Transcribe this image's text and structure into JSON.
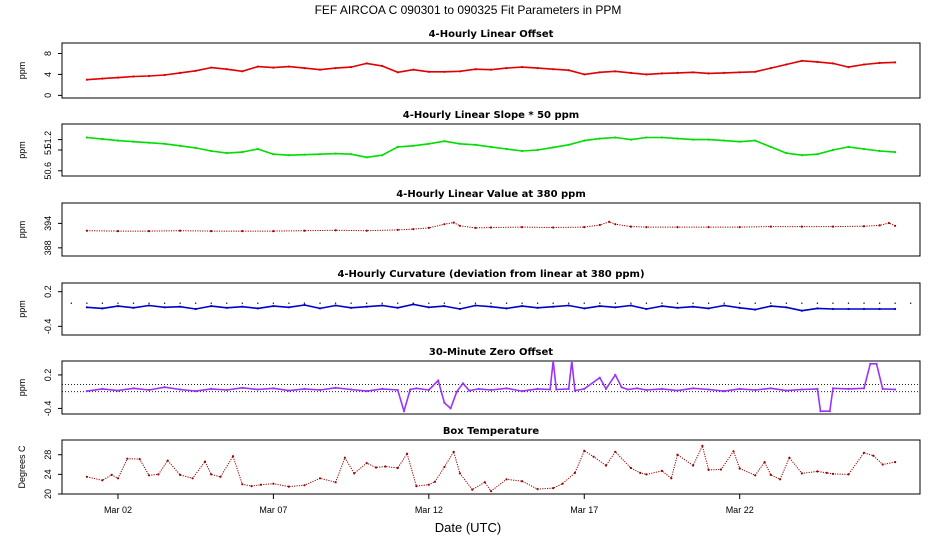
{
  "title": "FEF   AIRCOA C   090301 to 090325   Fit Parameters in PPM",
  "chart_data": {
    "type": "line",
    "title": "FEF   AIRCOA C   090301 to 090325   Fit Parameters in PPM",
    "xlabel": "Date (UTC)",
    "x_ticks": [
      {
        "day": 2,
        "label": "Mar 02"
      },
      {
        "day": 7,
        "label": "Mar 07"
      },
      {
        "day": 12,
        "label": "Mar 12"
      },
      {
        "day": 17,
        "label": "Mar 17"
      },
      {
        "day": 22,
        "label": "Mar 22"
      }
    ],
    "xlim": [
      0.2,
      27.8
    ],
    "panels": [
      {
        "title": "4-Hourly Linear Offset",
        "ylabel": "ppm",
        "ylim": [
          -0.5,
          10
        ],
        "yticks": [
          0,
          4,
          8
        ],
        "color": "#e00000",
        "style": "line",
        "series": {
          "x": [
            1,
            1.5,
            2,
            2.5,
            3,
            3.5,
            4,
            4.5,
            5,
            5.5,
            6,
            6.5,
            7,
            7.5,
            8,
            8.5,
            9,
            9.5,
            10,
            10.5,
            11,
            11.5,
            12,
            12.5,
            13,
            13.5,
            14,
            14.5,
            15,
            15.5,
            16,
            16.5,
            17,
            17.5,
            18,
            18.5,
            19,
            19.5,
            20,
            20.5,
            21,
            21.5,
            22,
            22.5,
            23,
            23.5,
            24,
            24.5,
            25,
            25.5,
            26,
            26.5,
            27
          ],
          "y": [
            3.0,
            3.2,
            3.4,
            3.6,
            3.7,
            3.9,
            4.3,
            4.7,
            5.3,
            5.0,
            4.6,
            5.5,
            5.3,
            5.5,
            5.2,
            4.9,
            5.2,
            5.4,
            6.1,
            5.6,
            4.4,
            4.9,
            4.5,
            4.5,
            4.6,
            5.0,
            4.9,
            5.2,
            5.4,
            5.2,
            5.0,
            4.8,
            4.0,
            4.4,
            4.6,
            4.3,
            4.0,
            4.2,
            4.3,
            4.4,
            4.2,
            4.3,
            4.4,
            4.5,
            5.2,
            5.9,
            6.6,
            6.4,
            6.1,
            5.4,
            5.9,
            6.2,
            6.3
          ]
        }
      },
      {
        "title": "4-Hourly Linear Slope * 50 ppm",
        "ylabel": "ppm",
        "ylim": [
          50.5,
          51.5
        ],
        "yticks": [
          50.6,
          51.0,
          51.2
        ],
        "color": "#00dd00",
        "style": "line",
        "series": {
          "x": [
            1,
            1.5,
            2,
            2.5,
            3,
            3.5,
            4,
            4.5,
            5,
            5.5,
            6,
            6.5,
            7,
            7.5,
            8,
            8.5,
            9,
            9.5,
            10,
            10.5,
            11,
            11.5,
            12,
            12.5,
            13,
            13.5,
            14,
            14.5,
            15,
            15.5,
            16,
            16.5,
            17,
            17.5,
            18,
            18.5,
            19,
            19.5,
            20,
            20.5,
            21,
            21.5,
            22,
            22.5,
            23,
            23.5,
            24,
            24.5,
            25,
            25.5,
            26,
            26.5,
            27
          ],
          "y": [
            51.24,
            51.21,
            51.18,
            51.16,
            51.14,
            51.12,
            51.08,
            51.04,
            50.98,
            50.94,
            50.96,
            51.02,
            50.92,
            50.9,
            50.91,
            50.92,
            50.93,
            50.92,
            50.86,
            50.9,
            51.06,
            51.08,
            51.12,
            51.17,
            51.12,
            51.1,
            51.06,
            51.02,
            50.98,
            51.0,
            51.05,
            51.1,
            51.18,
            51.22,
            51.24,
            51.2,
            51.24,
            51.24,
            51.22,
            51.2,
            51.2,
            51.18,
            51.16,
            51.18,
            51.06,
            50.94,
            50.9,
            50.92,
            51.0,
            51.06,
            51.02,
            50.98,
            50.96
          ]
        }
      },
      {
        "title": "4-Hourly Linear Value at 380 ppm",
        "ylabel": "ppm",
        "ylim": [
          386,
          399
        ],
        "yticks": [
          388,
          394
        ],
        "color": "#990000",
        "style": "dots",
        "series": {
          "x": [
            1,
            2,
            3,
            4,
            5,
            6,
            7,
            8,
            9,
            10,
            11,
            11.5,
            12,
            12.5,
            12.8,
            13,
            13.5,
            14,
            15,
            16,
            17,
            17.5,
            17.8,
            18,
            18.5,
            19,
            20,
            21,
            22,
            23,
            24,
            25,
            26,
            26.5,
            26.8,
            27
          ],
          "y": [
            392.2,
            392.1,
            392.1,
            392.2,
            392.1,
            392.1,
            392.1,
            392.2,
            392.3,
            392.2,
            392.4,
            392.6,
            392.9,
            393.8,
            394.2,
            393.4,
            392.9,
            393.0,
            393.1,
            393.0,
            393.1,
            393.6,
            394.4,
            393.8,
            393.2,
            393.1,
            393.1,
            393.1,
            393.1,
            393.2,
            393.2,
            393.2,
            393.3,
            393.5,
            394.1,
            393.4
          ]
        }
      },
      {
        "title": "4-Hourly Curvature (deviation from linear at 380 ppm)",
        "ylabel": "ppm",
        "ylim": [
          -0.55,
          0.35
        ],
        "yticks": [
          -0.4,
          0.2
        ],
        "color": "#0000cc",
        "style": "line",
        "series": {
          "x": [
            1,
            1.5,
            2,
            2.5,
            3,
            3.5,
            4,
            4.5,
            5,
            5.5,
            6,
            6.5,
            7,
            7.5,
            8,
            8.5,
            9,
            9.5,
            10,
            10.5,
            11,
            11.5,
            12,
            12.5,
            13,
            13.5,
            14,
            14.5,
            15,
            15.5,
            16,
            16.5,
            17,
            17.5,
            18,
            18.5,
            19,
            19.5,
            20,
            20.5,
            21,
            21.5,
            22,
            22.5,
            23,
            23.5,
            24,
            24.5,
            25,
            25.5,
            26,
            26.5,
            27
          ],
          "y": [
            -0.07,
            -0.09,
            -0.05,
            -0.08,
            -0.04,
            -0.07,
            -0.06,
            -0.1,
            -0.05,
            -0.08,
            -0.06,
            -0.09,
            -0.05,
            -0.07,
            -0.03,
            -0.09,
            -0.04,
            -0.08,
            -0.06,
            -0.04,
            -0.08,
            -0.02,
            -0.07,
            -0.05,
            -0.1,
            -0.04,
            -0.06,
            -0.09,
            -0.05,
            -0.08,
            -0.06,
            -0.04,
            -0.09,
            -0.05,
            -0.07,
            -0.04,
            -0.1,
            -0.05,
            -0.08,
            -0.06,
            -0.09,
            -0.04,
            -0.08,
            -0.11,
            -0.05,
            -0.07,
            -0.13,
            -0.09,
            -0.1,
            -0.1,
            -0.1,
            -0.1,
            -0.1
          ]
        },
        "reference_dots_y": 0.0
      },
      {
        "title": "30-Minute Zero Offset",
        "ylabel": "ppm",
        "ylim": [
          -0.5,
          0.45
        ],
        "yticks": [
          -0.4,
          0.2
        ],
        "color": "#9933ff",
        "style": "line",
        "reference_lines_y": [
          0.03,
          -0.1
        ],
        "series": {
          "x": [
            1,
            1.5,
            2,
            2.5,
            3,
            3.5,
            4,
            4.5,
            5,
            5.5,
            6,
            6.5,
            7,
            7.5,
            8,
            8.5,
            9,
            9.5,
            10,
            10.5,
            11,
            11.2,
            11.4,
            11.6,
            12,
            12.3,
            12.5,
            12.7,
            12.9,
            13.1,
            13.3,
            13.6,
            14,
            14.5,
            15,
            15.5,
            15.9,
            16.0,
            16.1,
            16.5,
            16.6,
            16.7,
            17,
            17.5,
            17.7,
            18,
            18.2,
            18.4,
            18.7,
            19,
            19.5,
            20,
            20.5,
            21,
            21.5,
            22,
            22.5,
            23,
            23.5,
            24,
            24.5,
            24.6,
            24.9,
            25,
            25.5,
            26,
            26.2,
            26.4,
            26.6,
            27
          ],
          "y": [
            -0.09,
            -0.05,
            -0.08,
            -0.04,
            -0.07,
            -0.02,
            -0.06,
            -0.09,
            -0.05,
            -0.07,
            -0.03,
            -0.06,
            -0.04,
            -0.08,
            -0.05,
            -0.07,
            -0.03,
            -0.06,
            -0.09,
            -0.05,
            -0.07,
            -0.45,
            -0.06,
            -0.04,
            -0.07,
            0.1,
            -0.3,
            -0.4,
            -0.1,
            0.05,
            -0.08,
            -0.05,
            -0.07,
            -0.04,
            -0.09,
            -0.05,
            -0.06,
            0.45,
            -0.06,
            -0.05,
            0.45,
            -0.08,
            -0.05,
            0.15,
            -0.05,
            0.2,
            -0.02,
            -0.06,
            -0.04,
            -0.07,
            -0.05,
            -0.08,
            -0.04,
            -0.06,
            -0.09,
            -0.05,
            -0.07,
            -0.04,
            -0.08,
            -0.06,
            -0.05,
            -0.45,
            -0.45,
            -0.04,
            -0.05,
            -0.04,
            0.4,
            0.4,
            -0.05,
            -0.06
          ]
        }
      },
      {
        "title": "Box Temperature",
        "ylabel": "Degrees C",
        "ylim": [
          20,
          31
        ],
        "yticks": [
          20,
          24,
          28
        ],
        "color": "#990000",
        "style": "dots",
        "series": {
          "x": [
            1,
            1.5,
            1.8,
            2,
            2.3,
            2.7,
            3,
            3.3,
            3.6,
            4,
            4.4,
            4.8,
            5,
            5.3,
            5.7,
            6,
            6.3,
            6.6,
            7,
            7.5,
            8,
            8.5,
            9,
            9.3,
            9.6,
            10,
            10.3,
            10.6,
            11,
            11.3,
            11.6,
            12,
            12.2,
            12.5,
            12.8,
            13,
            13.4,
            13.8,
            14,
            14.5,
            15,
            15.5,
            16,
            16.3,
            16.7,
            17,
            17.3,
            17.7,
            18,
            18.5,
            18.8,
            19,
            19.5,
            19.8,
            20,
            20.5,
            20.8,
            21,
            21.4,
            21.8,
            22,
            22.5,
            22.8,
            23,
            23.3,
            23.6,
            24,
            24.5,
            24.8,
            25,
            25.5,
            26,
            26.3,
            26.6,
            27
          ],
          "y": [
            23.5,
            22.8,
            23.9,
            23.2,
            27.2,
            27.1,
            23.8,
            24.0,
            26.8,
            23.9,
            23.2,
            26.6,
            24.0,
            23.5,
            27.7,
            22.0,
            21.6,
            21.9,
            22.1,
            21.5,
            21.8,
            23.2,
            22.4,
            27.4,
            24.2,
            26.3,
            25.4,
            25.6,
            25.3,
            28.2,
            21.6,
            21.9,
            22.5,
            25.5,
            28.6,
            24.2,
            20.9,
            22.4,
            20.6,
            23.0,
            22.6,
            21.0,
            21.2,
            22.1,
            24.3,
            28.8,
            27.6,
            25.8,
            28.6,
            25.3,
            24.3,
            24.0,
            24.7,
            23.2,
            28.0,
            25.8,
            29.8,
            24.9,
            25.0,
            28.7,
            25.2,
            23.8,
            26.5,
            23.9,
            23.0,
            27.4,
            24.2,
            24.6,
            24.3,
            24.1,
            24.0,
            28.4,
            27.8,
            26.0,
            26.5
          ]
        }
      }
    ]
  }
}
